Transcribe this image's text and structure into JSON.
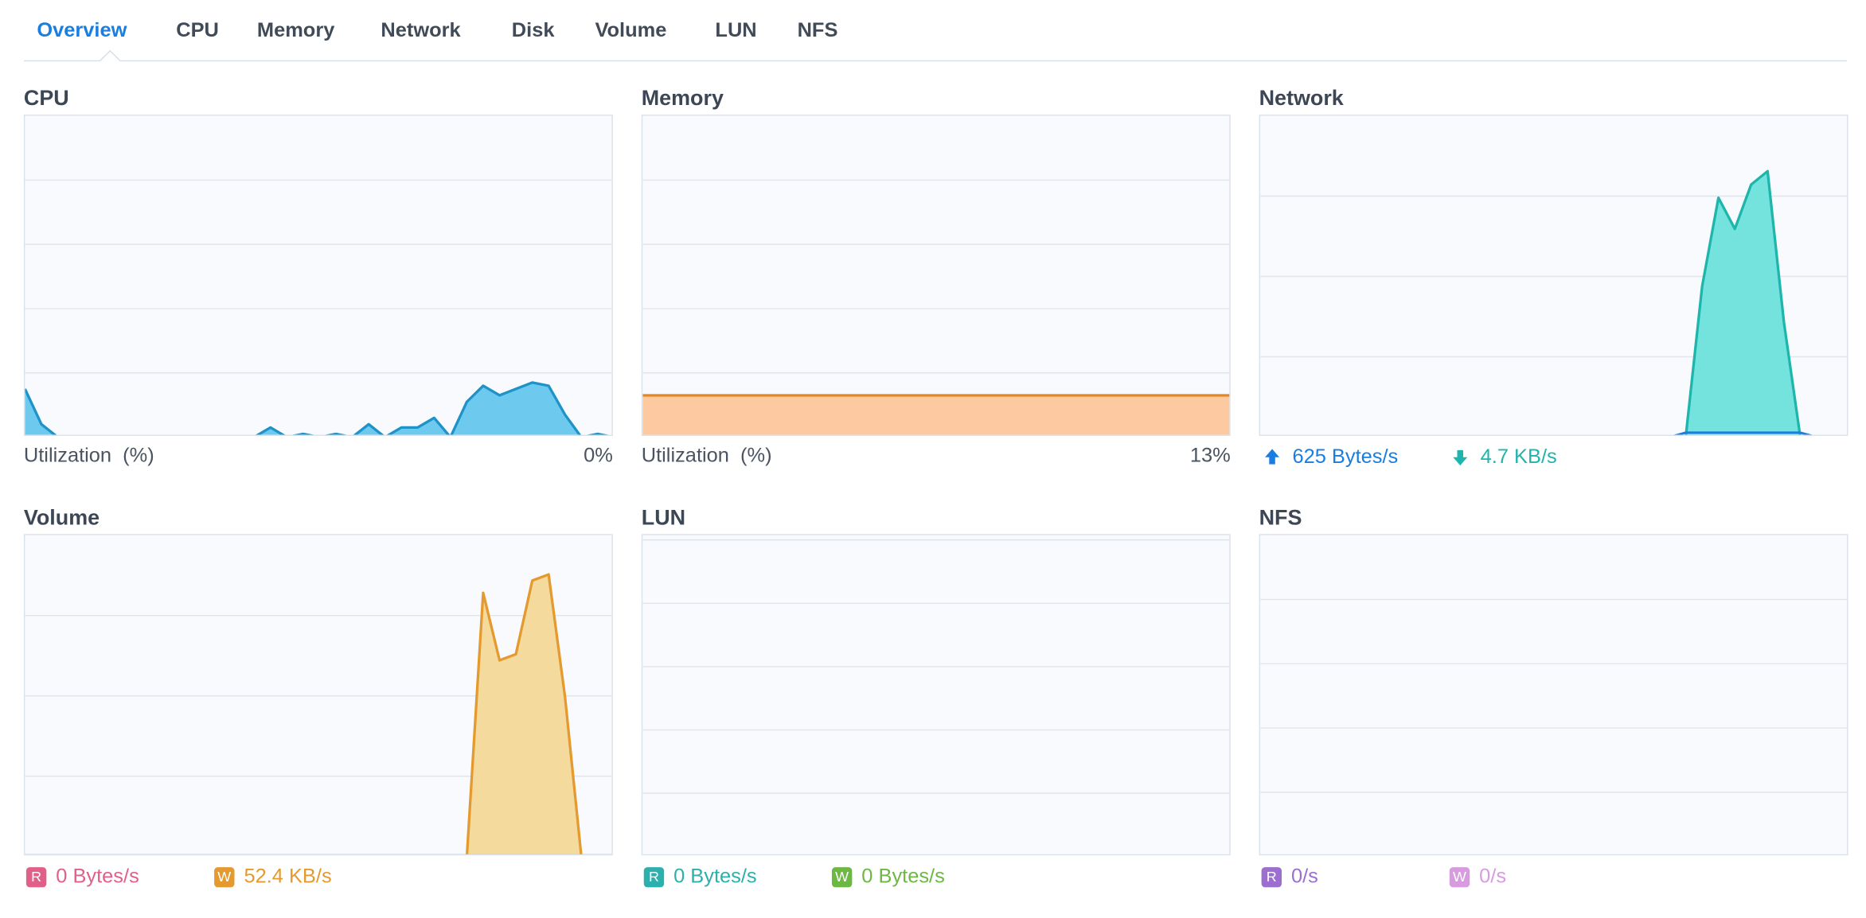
{
  "tabs": [
    {
      "label": "Overview",
      "active": true
    },
    {
      "label": "CPU"
    },
    {
      "label": "Memory"
    },
    {
      "label": "Network"
    },
    {
      "label": "Disk"
    },
    {
      "label": "Volume"
    },
    {
      "label": "LUN"
    },
    {
      "label": "NFS"
    }
  ],
  "panels": {
    "cpu": {
      "title": "CPU",
      "label": "Utilization  (%)",
      "value": "0%",
      "color": "#1e93c8",
      "fill": "#6ec9ee"
    },
    "memory": {
      "title": "Memory",
      "label": "Utilization  (%)",
      "value": "13%",
      "color": "#e0882a",
      "fill": "#fdc9a0"
    },
    "network": {
      "title": "Network",
      "up_icon": "upload-arrow-icon",
      "up_value": "625 Bytes/s",
      "up_color": "#1a7ee0",
      "down_icon": "download-arrow-icon",
      "down_value": "4.7 KB/s",
      "down_color": "#1eb5ad",
      "fill": "#74e3dd"
    },
    "volume": {
      "title": "Volume",
      "read_badge": "R",
      "read_value": "0 Bytes/s",
      "read_color": "#e0608a",
      "write_badge": "W",
      "write_value": "52.4 KB/s",
      "write_color": "#e49a2e",
      "fill": "#f5da9d"
    },
    "lun": {
      "title": "LUN",
      "read_badge": "R",
      "read_value": "0 Bytes/s",
      "read_color": "#2bb0ae",
      "write_badge": "W",
      "write_value": "0 Bytes/s",
      "write_color": "#6db843"
    },
    "nfs": {
      "title": "NFS",
      "read_badge": "R",
      "read_value": "0/s",
      "read_color": "#9c6ed0",
      "write_badge": "W",
      "write_value": "0/s",
      "write_color": "#d89be0"
    }
  },
  "chart_data": [
    {
      "type": "area",
      "name": "cpu-utilization",
      "x": [
        0,
        1,
        2,
        3,
        4,
        5,
        6,
        7,
        8,
        9,
        10,
        11,
        12,
        13,
        14,
        15,
        16,
        17,
        18,
        19,
        20,
        21,
        22,
        23,
        24,
        25,
        26,
        27,
        28,
        29,
        30,
        31,
        32,
        33,
        34,
        35,
        36
      ],
      "values": [
        15,
        4,
        0,
        0,
        0,
        0,
        0,
        0,
        0,
        0,
        0,
        0,
        0,
        0,
        0,
        3,
        0,
        1,
        0,
        1,
        0,
        4,
        0,
        3,
        3,
        6,
        0,
        11,
        16,
        13,
        15,
        17,
        16,
        7,
        0,
        1,
        0
      ],
      "ylim": [
        0,
        100
      ],
      "gridlines": 5
    },
    {
      "type": "area",
      "name": "memory-utilization",
      "x": [
        0,
        1
      ],
      "values": [
        13,
        13
      ],
      "ylim": [
        0,
        100
      ],
      "gridlines": 5
    },
    {
      "type": "area",
      "name": "network",
      "series": [
        {
          "label": "upload",
          "values": [
            0,
            0,
            0,
            0,
            0,
            0,
            0,
            0,
            0,
            0,
            0,
            0,
            0,
            0,
            0,
            0,
            0,
            0,
            0,
            0,
            0,
            0,
            0,
            0,
            0,
            0,
            0.1,
            0.1,
            0.1,
            0.1,
            0.1,
            0.1,
            0.1,
            0.1,
            0,
            0,
            0
          ]
        },
        {
          "label": "download",
          "values": [
            0,
            0,
            0,
            0,
            0,
            0,
            0,
            0,
            0,
            0,
            0,
            0,
            0,
            0,
            0,
            0,
            0,
            0,
            0,
            0,
            0,
            0,
            0,
            0,
            0,
            0,
            0,
            3.4,
            5.4,
            4.7,
            5.7,
            6,
            2.6,
            0,
            0,
            0,
            0
          ]
        }
      ],
      "ylim": [
        0,
        7.25
      ],
      "gridlines": 4
    },
    {
      "type": "area",
      "name": "volume",
      "series": [
        {
          "label": "read",
          "values": [
            0,
            0,
            0,
            0,
            0,
            0,
            0,
            0,
            0,
            0,
            0,
            0,
            0,
            0,
            0,
            0,
            0,
            0,
            0,
            0,
            0,
            0,
            0,
            0,
            0,
            0,
            0,
            0,
            0,
            0,
            0,
            0,
            0,
            0,
            0,
            0,
            0
          ]
        },
        {
          "label": "write",
          "values": [
            0,
            0,
            0,
            0,
            0,
            0,
            0,
            0,
            0,
            0,
            0,
            0,
            0,
            0,
            0,
            0,
            0,
            0,
            0,
            0,
            0,
            0,
            0,
            0,
            0,
            0,
            0,
            0,
            43,
            32,
            33,
            45,
            46,
            26,
            0,
            0,
            0
          ]
        }
      ],
      "ylim": [
        0,
        52.4
      ],
      "gridlines": 4
    },
    {
      "type": "area",
      "name": "lun",
      "series": [
        {
          "label": "read",
          "values": [
            0,
            0
          ]
        },
        {
          "label": "write",
          "values": [
            0,
            0
          ]
        }
      ],
      "gridlines": 5
    },
    {
      "type": "area",
      "name": "nfs",
      "series": [
        {
          "label": "read",
          "values": [
            0,
            0
          ]
        },
        {
          "label": "write",
          "values": [
            0,
            0
          ]
        }
      ],
      "gridlines": 5
    }
  ]
}
